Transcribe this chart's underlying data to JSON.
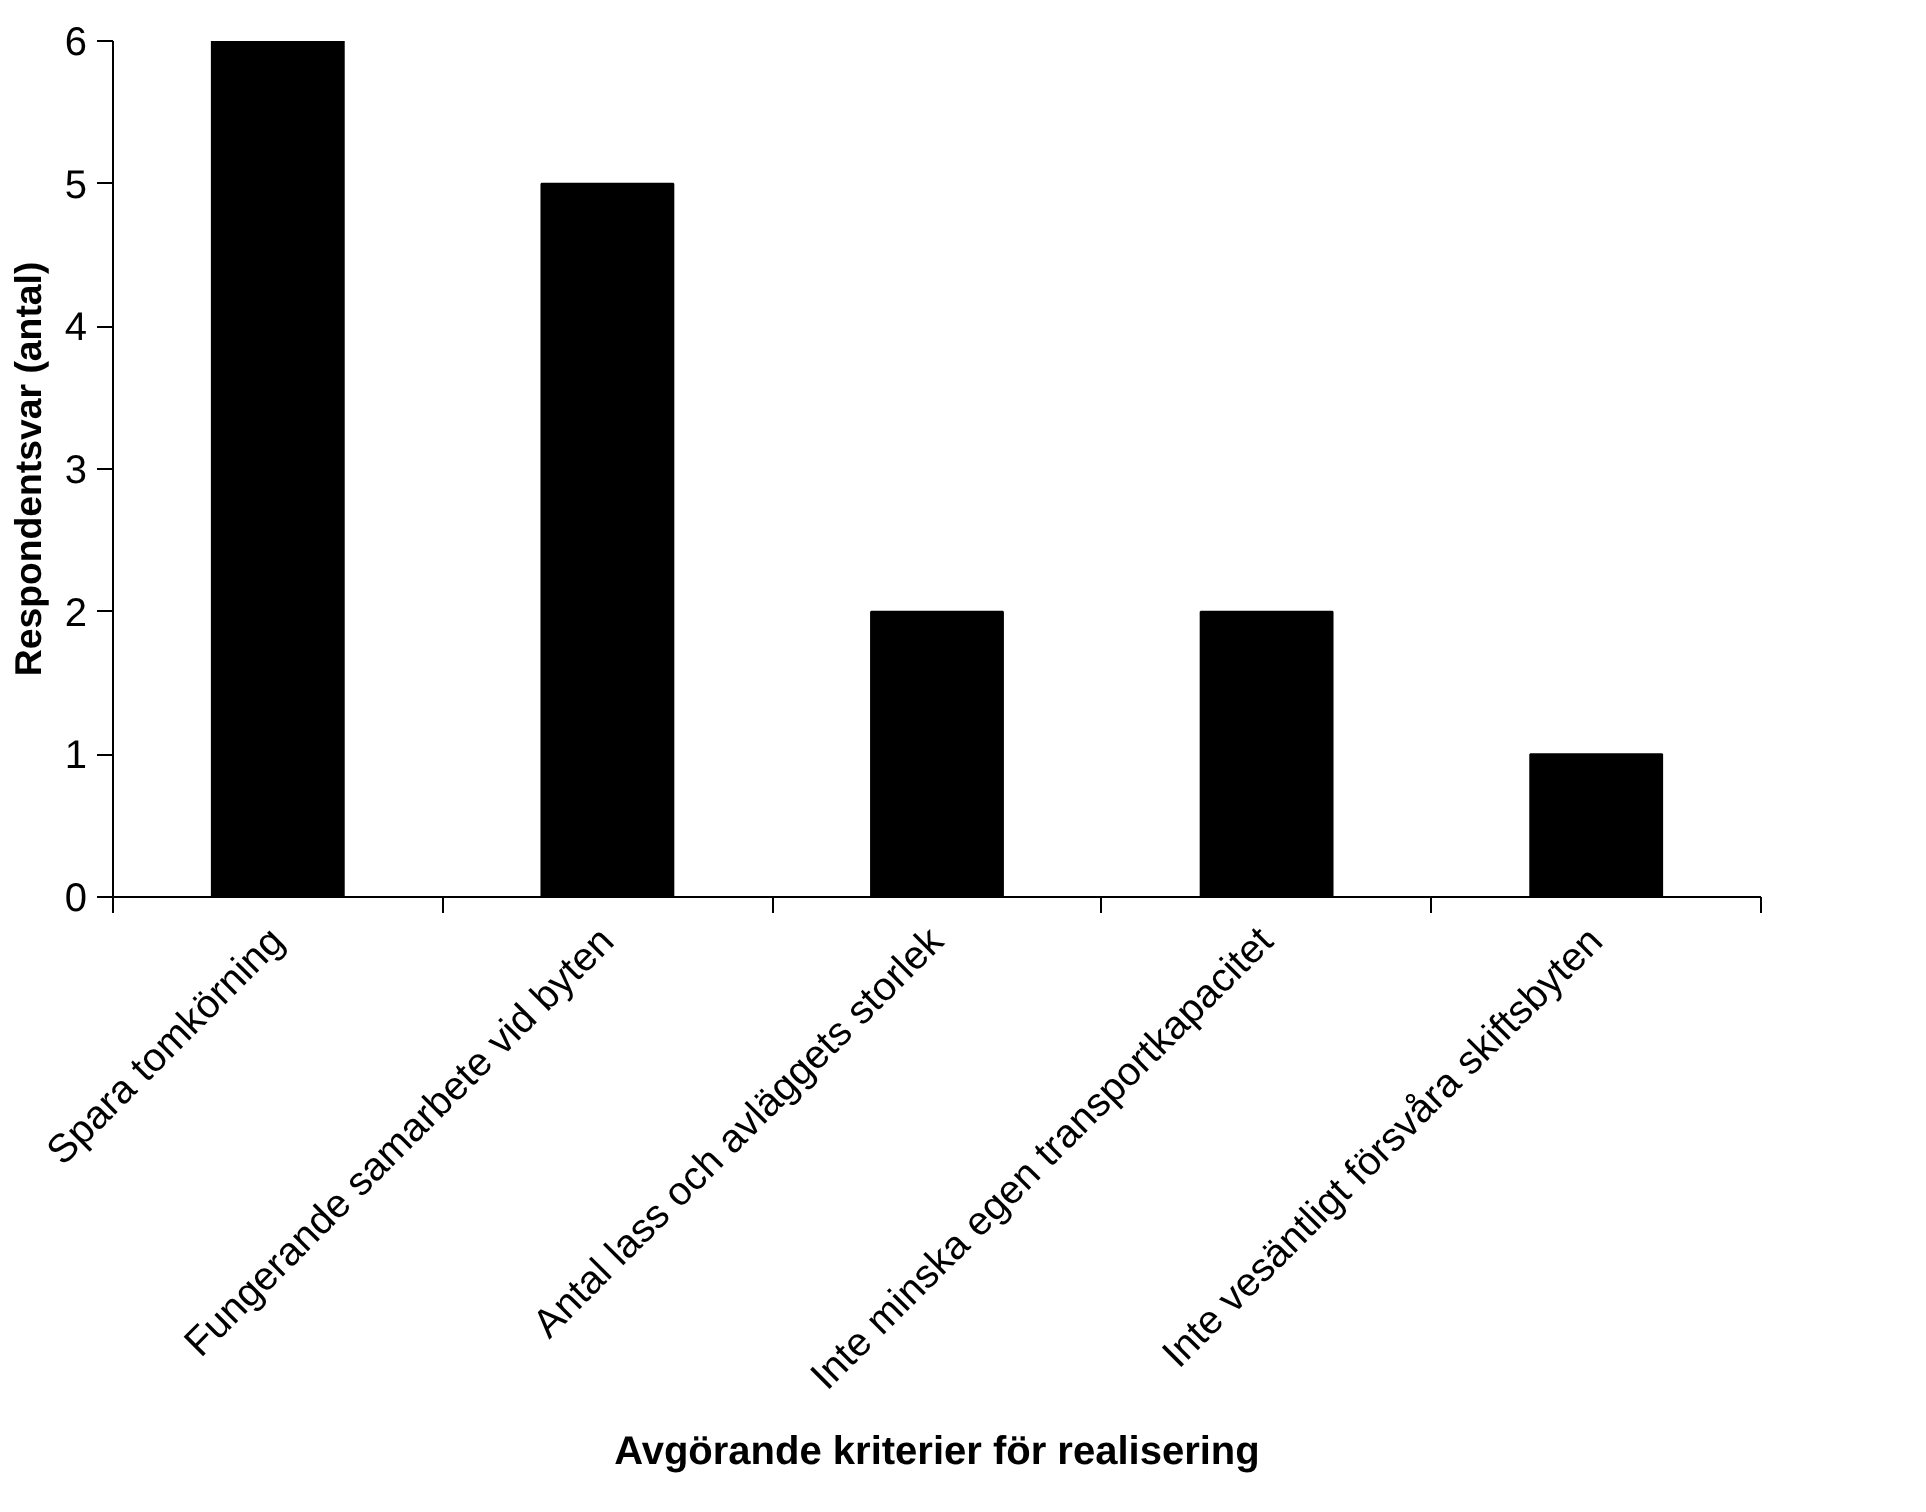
{
  "chart_data": {
    "type": "bar",
    "categories": [
      "Spara tomkörning",
      "Fungerande samarbete vid byten",
      "Antal lass och avläggets storlek",
      "Inte minska egen transportkapacitet",
      "Inte vesäntligt försvåra skiftsbyten"
    ],
    "values": [
      6,
      5,
      2,
      2,
      1
    ],
    "color": "#000000",
    "xlabel": "Avgörande kriterier för realisering",
    "ylabel": "Respondentsvar (antal)",
    "ylim": [
      0,
      6
    ],
    "yticks": [
      0,
      1,
      2,
      3,
      4,
      5,
      6
    ],
    "grid": false
  }
}
